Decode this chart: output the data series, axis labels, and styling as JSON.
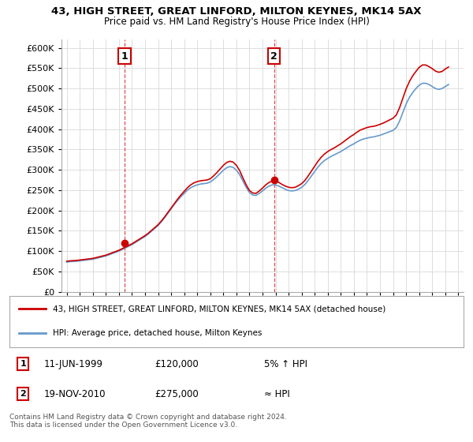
{
  "title": "43, HIGH STREET, GREAT LINFORD, MILTON KEYNES, MK14 5AX",
  "subtitle": "Price paid vs. HM Land Registry's House Price Index (HPI)",
  "legend_line1": "43, HIGH STREET, GREAT LINFORD, MILTON KEYNES, MK14 5AX (detached house)",
  "legend_line2": "HPI: Average price, detached house, Milton Keynes",
  "annotation1_label": "1",
  "annotation1_date": "11-JUN-1999",
  "annotation1_price": "£120,000",
  "annotation1_note": "5% ↑ HPI",
  "annotation2_label": "2",
  "annotation2_date": "19-NOV-2010",
  "annotation2_price": "£275,000",
  "annotation2_note": "≈ HPI",
  "footer": "Contains HM Land Registry data © Crown copyright and database right 2024.\nThis data is licensed under the Open Government Licence v3.0.",
  "red_color": "#cc0000",
  "blue_color": "#6699cc",
  "marker_color": "#cc0000",
  "background_color": "#ffffff",
  "grid_color": "#dddddd",
  "ylim": [
    0,
    620000
  ],
  "yticks": [
    0,
    50000,
    100000,
    150000,
    200000,
    250000,
    300000,
    350000,
    400000,
    450000,
    500000,
    550000,
    600000
  ],
  "hpi_x": [
    1995.0,
    1995.25,
    1995.5,
    1995.75,
    1996.0,
    1996.25,
    1996.5,
    1996.75,
    1997.0,
    1997.25,
    1997.5,
    1997.75,
    1998.0,
    1998.25,
    1998.5,
    1998.75,
    1999.0,
    1999.25,
    1999.5,
    1999.75,
    2000.0,
    2000.25,
    2000.5,
    2000.75,
    2001.0,
    2001.25,
    2001.5,
    2001.75,
    2002.0,
    2002.25,
    2002.5,
    2002.75,
    2003.0,
    2003.25,
    2003.5,
    2003.75,
    2004.0,
    2004.25,
    2004.5,
    2004.75,
    2005.0,
    2005.25,
    2005.5,
    2005.75,
    2006.0,
    2006.25,
    2006.5,
    2006.75,
    2007.0,
    2007.25,
    2007.5,
    2007.75,
    2008.0,
    2008.25,
    2008.5,
    2008.75,
    2009.0,
    2009.25,
    2009.5,
    2009.75,
    2010.0,
    2010.25,
    2010.5,
    2010.75,
    2011.0,
    2011.25,
    2011.5,
    2011.75,
    2012.0,
    2012.25,
    2012.5,
    2012.75,
    2013.0,
    2013.25,
    2013.5,
    2013.75,
    2014.0,
    2014.25,
    2014.5,
    2014.75,
    2015.0,
    2015.25,
    2015.5,
    2015.75,
    2016.0,
    2016.25,
    2016.5,
    2016.75,
    2017.0,
    2017.25,
    2017.5,
    2017.75,
    2018.0,
    2018.25,
    2018.5,
    2018.75,
    2019.0,
    2019.25,
    2019.5,
    2019.75,
    2020.0,
    2020.25,
    2020.5,
    2020.75,
    2021.0,
    2021.25,
    2021.5,
    2021.75,
    2022.0,
    2022.25,
    2022.5,
    2022.75,
    2023.0,
    2023.25,
    2023.5,
    2023.75,
    2024.0,
    2024.25
  ],
  "hpi_y": [
    73000,
    74000,
    74500,
    75000,
    76000,
    77000,
    78000,
    79000,
    80000,
    82000,
    84000,
    86000,
    88000,
    91000,
    94000,
    97000,
    100000,
    104000,
    108000,
    112000,
    116000,
    121000,
    126000,
    131000,
    136000,
    142000,
    149000,
    156000,
    163000,
    172000,
    182000,
    193000,
    204000,
    215000,
    225000,
    234000,
    242000,
    250000,
    256000,
    260000,
    263000,
    265000,
    266000,
    267000,
    270000,
    276000,
    283000,
    291000,
    299000,
    305000,
    308000,
    306000,
    299000,
    288000,
    272000,
    257000,
    244000,
    238000,
    237000,
    242000,
    248000,
    255000,
    260000,
    263000,
    263000,
    260000,
    256000,
    252000,
    249000,
    248000,
    249000,
    252000,
    257000,
    264000,
    274000,
    285000,
    296000,
    307000,
    316000,
    323000,
    328000,
    333000,
    337000,
    341000,
    345000,
    350000,
    355000,
    360000,
    364000,
    369000,
    373000,
    376000,
    378000,
    380000,
    381000,
    383000,
    385000,
    388000,
    391000,
    394000,
    397000,
    404000,
    420000,
    441000,
    462000,
    478000,
    490000,
    500000,
    508000,
    513000,
    513000,
    510000,
    505000,
    500000,
    498000,
    500000,
    505000,
    510000
  ],
  "red_x": [
    1995.0,
    1995.25,
    1995.5,
    1995.75,
    1996.0,
    1996.25,
    1996.5,
    1996.75,
    1997.0,
    1997.25,
    1997.5,
    1997.75,
    1998.0,
    1998.25,
    1998.5,
    1998.75,
    1999.0,
    1999.25,
    1999.5,
    1999.75,
    2000.0,
    2000.25,
    2000.5,
    2000.75,
    2001.0,
    2001.25,
    2001.5,
    2001.75,
    2002.0,
    2002.25,
    2002.5,
    2002.75,
    2003.0,
    2003.25,
    2003.5,
    2003.75,
    2004.0,
    2004.25,
    2004.5,
    2004.75,
    2005.0,
    2005.25,
    2005.5,
    2005.75,
    2006.0,
    2006.25,
    2006.5,
    2006.75,
    2007.0,
    2007.25,
    2007.5,
    2007.75,
    2008.0,
    2008.25,
    2008.5,
    2008.75,
    2009.0,
    2009.25,
    2009.5,
    2009.75,
    2010.0,
    2010.25,
    2010.5,
    2010.75,
    2011.0,
    2011.25,
    2011.5,
    2011.75,
    2012.0,
    2012.25,
    2012.5,
    2012.75,
    2013.0,
    2013.25,
    2013.5,
    2013.75,
    2014.0,
    2014.25,
    2014.5,
    2014.75,
    2015.0,
    2015.25,
    2015.5,
    2015.75,
    2016.0,
    2016.25,
    2016.5,
    2016.75,
    2017.0,
    2017.25,
    2017.5,
    2017.75,
    2018.0,
    2018.25,
    2018.5,
    2018.75,
    2019.0,
    2019.25,
    2019.5,
    2019.75,
    2020.0,
    2020.25,
    2020.5,
    2020.75,
    2021.0,
    2021.25,
    2021.5,
    2021.75,
    2022.0,
    2022.25,
    2022.5,
    2022.75,
    2023.0,
    2023.25,
    2023.5,
    2023.75,
    2024.0,
    2024.25
  ],
  "red_y": [
    75000,
    76000,
    76500,
    77000,
    78000,
    79000,
    80000,
    81000,
    82000,
    84000,
    86000,
    88000,
    90000,
    93000,
    96000,
    99000,
    102000,
    106000,
    110000,
    114000,
    118000,
    123000,
    128000,
    133000,
    138000,
    144000,
    151000,
    158000,
    165000,
    174000,
    184000,
    195000,
    206000,
    217000,
    228000,
    238000,
    247000,
    256000,
    263000,
    268000,
    271000,
    273000,
    274000,
    275000,
    278000,
    285000,
    293000,
    302000,
    311000,
    318000,
    321000,
    319000,
    311000,
    298000,
    280000,
    263000,
    249000,
    243000,
    242000,
    248000,
    255000,
    263000,
    269000,
    272000,
    272000,
    269000,
    264000,
    260000,
    257000,
    256000,
    257000,
    261000,
    266000,
    274000,
    285000,
    297000,
    309000,
    321000,
    331000,
    339000,
    345000,
    350000,
    354000,
    359000,
    364000,
    370000,
    376000,
    382000,
    387000,
    393000,
    398000,
    401000,
    404000,
    406000,
    407000,
    409000,
    412000,
    415000,
    419000,
    423000,
    427000,
    435000,
    453000,
    476000,
    499000,
    517000,
    531000,
    542000,
    552000,
    558000,
    558000,
    554000,
    549000,
    543000,
    540000,
    542000,
    548000,
    553000
  ],
  "point1_x": 1999.44,
  "point1_y": 120000,
  "point2_x": 2010.88,
  "point2_y": 275000,
  "ann1_x": 1999.44,
  "ann2_x": 2010.88,
  "xlim_min": 1994.6,
  "xlim_max": 2025.4
}
